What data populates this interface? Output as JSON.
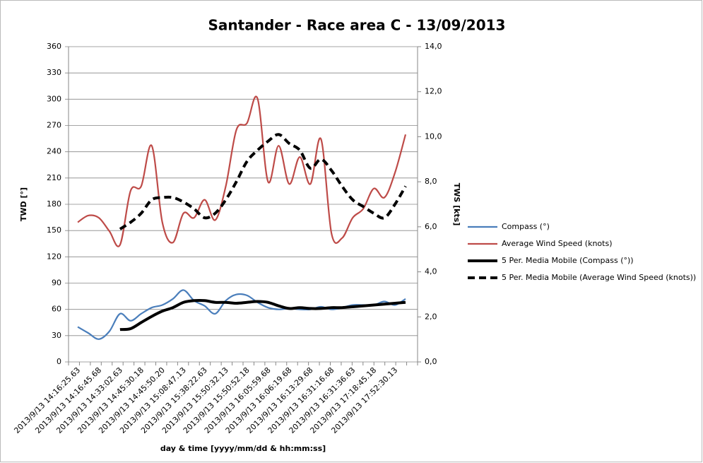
{
  "chart_data": {
    "type": "line",
    "title": "Santander - Race area C - 13/09/2013",
    "x_label": "day & time [yyyy/mm/dd & hh:mm:ss]",
    "y_label": "TWD [°]",
    "y2_label": "TWS [kts]",
    "categories": [
      "2013/9/13 14:16:25.63",
      null,
      "2013/9/13 14:16:45.68",
      null,
      "2013/9/13 14:33:02.63",
      null,
      "2013/9/13 14:45:30.18",
      null,
      "2013/9/13 14:45:50.20",
      null,
      "2013/9/13 15:08:47.13",
      null,
      "2013/9/13 15:38:22.63",
      null,
      "2013/9/13 15:50:32.13",
      null,
      "2013/9/13 15:50:52.18",
      null,
      "2013/9/13 16:05:59.68",
      null,
      "2013/9/13 16:06:19.68",
      null,
      "2013/9/13 16:13:29.68",
      null,
      "2013/9/13 16:31:16.68",
      null,
      "2013/9/13 16:31:36.63",
      null,
      "2013/9/13 17:18:45.18",
      null,
      "2013/9/13 17:52:30.13",
      null
    ],
    "ylim": [
      0,
      360
    ],
    "yticks": [
      0,
      30,
      60,
      90,
      120,
      150,
      180,
      210,
      240,
      270,
      300,
      330,
      360
    ],
    "y2lim": [
      0,
      14
    ],
    "y2ticks": [
      {
        "value": 0,
        "label": "0,0"
      },
      {
        "value": 2,
        "label": "2,0"
      },
      {
        "value": 4,
        "label": "4,0"
      },
      {
        "value": 6,
        "label": "6,0"
      },
      {
        "value": 8,
        "label": "8,0"
      },
      {
        "value": 10,
        "label": "10,0"
      },
      {
        "value": 12,
        "label": "12,0"
      },
      {
        "value": 14,
        "label": "14,0"
      }
    ],
    "grid": true,
    "legend": "right",
    "series": [
      {
        "name": "Compass (°)",
        "color": "#4a7ebb",
        "line_style": "solid",
        "values": [
          40,
          33,
          26,
          35,
          55,
          47,
          55,
          62,
          65,
          72,
          82,
          70,
          64,
          55,
          70,
          77,
          76,
          68,
          62,
          60,
          61,
          60,
          60,
          63,
          60,
          62,
          65,
          65,
          65,
          69,
          65,
          72
        ]
      },
      {
        "name": "Average Wind Speed (knots)",
        "color": "#be4b48",
        "axis": "y2",
        "line_style": "solid",
        "values": [
          6.2,
          6.5,
          6.4,
          5.8,
          5.2,
          7.6,
          7.8,
          9.6,
          6.2,
          5.3,
          6.6,
          6.4,
          7.2,
          6.3,
          7.8,
          10.3,
          10.6,
          11.7,
          8.0,
          9.6,
          7.9,
          9.1,
          7.9,
          9.9,
          5.7,
          5.5,
          6.4,
          6.8,
          7.7,
          7.3,
          8.4,
          10.1
        ]
      },
      {
        "name": "5 Per. Media Mobile (Compass (°))",
        "color": "#000000",
        "line_style": "solid",
        "values": [
          null,
          null,
          null,
          null,
          37,
          38,
          45,
          52,
          58,
          62,
          68,
          70,
          70,
          68,
          68,
          67,
          68,
          69,
          68,
          64,
          61,
          62,
          61,
          61,
          62,
          62,
          63,
          64,
          65,
          66,
          67,
          68
        ]
      },
      {
        "name": "5 Per. Media Mobile (Average Wind Speed (knots))",
        "color": "#000000",
        "axis": "y2",
        "line_style": "dashed",
        "values": [
          null,
          null,
          null,
          null,
          5.9,
          6.2,
          6.6,
          7.2,
          7.3,
          7.3,
          7.1,
          6.8,
          6.4,
          6.6,
          7.2,
          8.0,
          8.9,
          9.4,
          9.8,
          10.1,
          9.7,
          9.4,
          8.6,
          9.0,
          8.5,
          7.8,
          7.2,
          6.9,
          6.6,
          6.4,
          7.0,
          7.8
        ]
      }
    ]
  }
}
